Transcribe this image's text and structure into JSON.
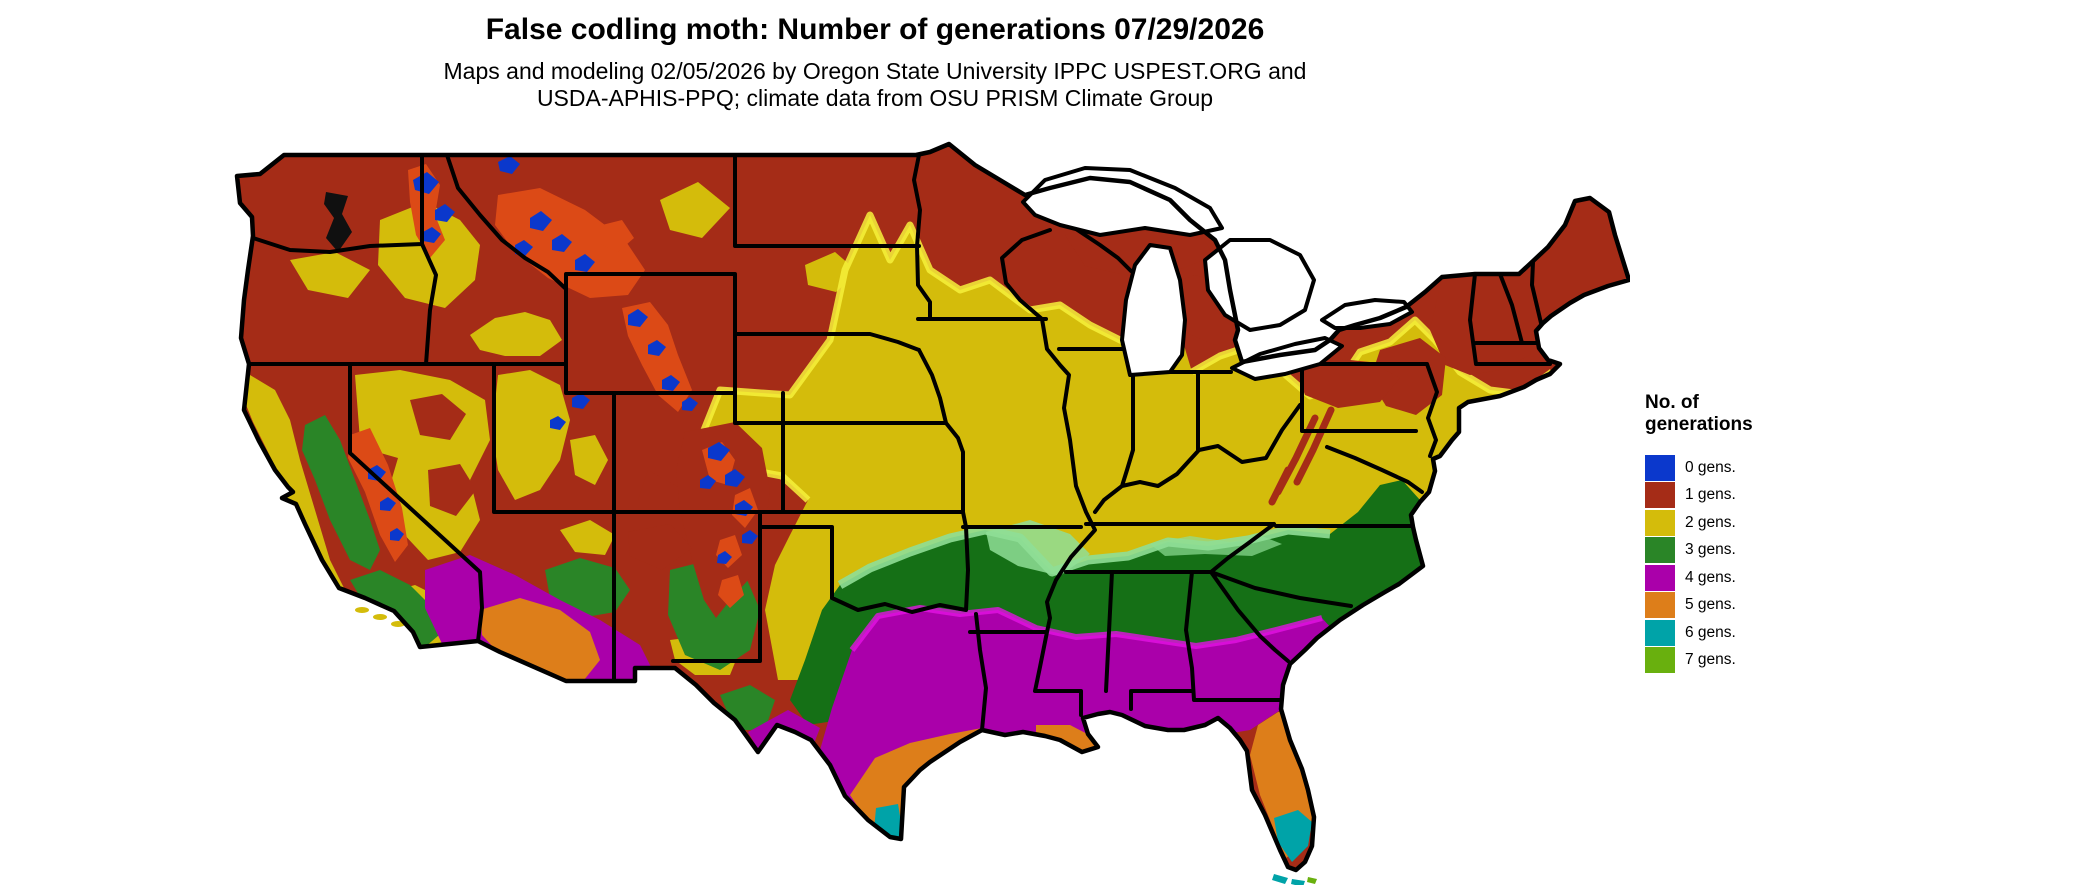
{
  "header": {
    "title": "False codling moth: Number of generations 07/29/2026",
    "subtitle_line1": "Maps and modeling 02/05/2026 by Oregon State University IPPC USPEST.ORG and",
    "subtitle_line2": "USDA-APHIS-PPQ; climate data from OSU PRISM Climate Group"
  },
  "legend": {
    "title_line1": "No. of",
    "title_line2": "generations",
    "items": [
      {
        "value": 0,
        "label": "0 gens.",
        "color": "#0B38CC"
      },
      {
        "value": 1,
        "label": "1 gens.",
        "color": "#A52C17"
      },
      {
        "value": 2,
        "label": "2 gens.",
        "color": "#D4BC0B"
      },
      {
        "value": 3,
        "label": "3 gens.",
        "color": "#2A8527"
      },
      {
        "value": 4,
        "label": "4 gens.",
        "color": "#AA00AA"
      },
      {
        "value": 5,
        "label": "5 gens.",
        "color": "#DD7E1A"
      },
      {
        "value": 6,
        "label": "6 gens.",
        "color": "#00A3A8"
      },
      {
        "value": 7,
        "label": "7 gens.",
        "color": "#69B00E"
      }
    ]
  },
  "chart_data": {
    "type": "heatmap",
    "subtype": "choropleth-map",
    "region": "Contiguous United States with state borders",
    "title": "False codling moth: Number of generations 07/29/2026",
    "variable": "Modeled number of false codling moth generations by 07/29/2026",
    "model_run_date": "02/05/2026",
    "source": "Oregon State University IPPC USPEST.ORG and USDA-APHIS-PPQ; climate data from OSU PRISM Climate Group",
    "legend_position": "right",
    "classes": [
      {
        "generations": 0,
        "color": "#0B38CC",
        "depicted_extent": "Highest mountain areas: Cascades, northern Rockies, Wind River, Uinta, Colorado Rockies, Sierra Nevada"
      },
      {
        "generations": 1,
        "color": "#A52C17",
        "depicted_extent": "Northern tier and mountain West: WA, OR, ID, MT, WY, ND, northern MN/WI/MI, northern New England, Adirondacks, Colorado Rockies"
      },
      {
        "generations": 2,
        "color": "#D4BC0B",
        "depicted_extent": "Mid-latitude band: central plains (SD, NE, KS), IA, IL, IN, OH, PA, NY, southern New England, KY, VA; Columbia Basin, Snake River Plain, Great Basin, coastal CA"
      },
      {
        "generations": 3,
        "color": "#2A8527",
        "depicted_extent": "OK, AR, MO Ozarks, TN, NC, coastal VA, CA Central Valley, NM/AZ highlands, west TX mountains"
      },
      {
        "generations": 4,
        "color": "#AA00AA",
        "depicted_extent": "Southern band: central TX, LA, MS, AL, GA, SC coast; Mojave and southwest deserts"
      },
      {
        "generations": 5,
        "color": "#DD7E1A",
        "depicted_extent": "Gulf coast of TX, Mississippi delta, most of FL peninsula, Sonoran desert of AZ and SE CA"
      },
      {
        "generations": 6,
        "color": "#00A3A8",
        "depicted_extent": "South FL / Everglades, lower Rio Grande valley of TX"
      },
      {
        "generations": 7,
        "color": "#69B00E",
        "depicted_extent": "Small spots in the Florida Keys"
      }
    ],
    "transition_shading": {
      "between_1_and_0": "#DC4A16",
      "between_1_and_2": "#F6F13B",
      "between_2_and_3": "#8FDE96",
      "between_3_and_4": "#E311E3"
    },
    "water_bodies_shown": [
      "Lake Superior",
      "Lake Michigan",
      "Lake Huron",
      "Lake Erie",
      "Lake Ontario",
      "Puget Sound",
      "Chesapeake Bay"
    ]
  }
}
